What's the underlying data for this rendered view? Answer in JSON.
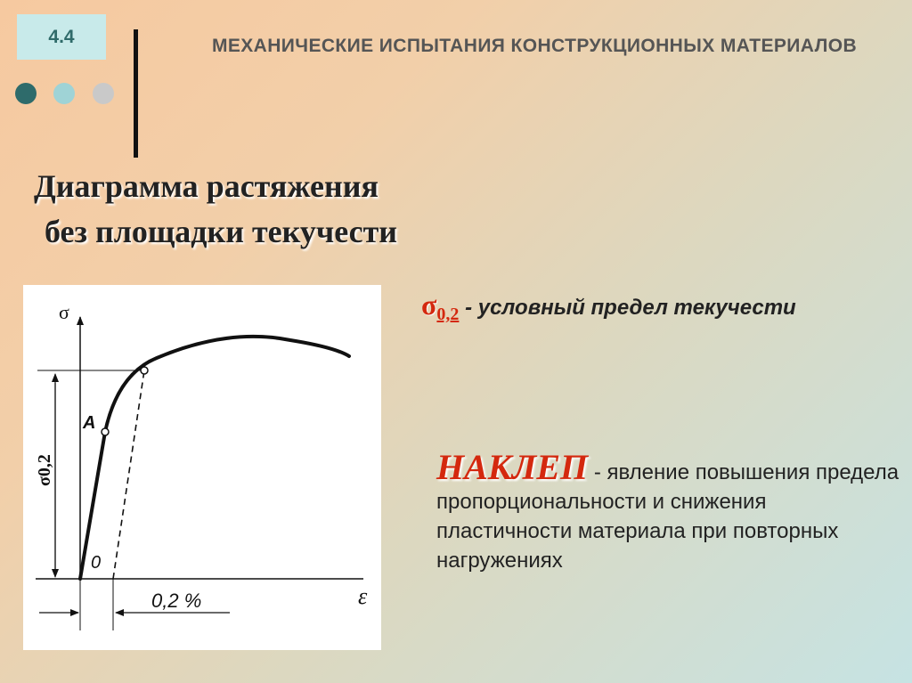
{
  "slide": {
    "number": "4.4",
    "title": "МЕХАНИЧЕСКИЕ ИСПЫТАНИЯ КОНСТРУКЦИОННЫХ МАТЕРИАЛОВ",
    "subtitle_line1": "Диаграмма растяжения",
    "subtitle_line2": "без площадки текучести",
    "colors": {
      "dot1": "#2e6b6b",
      "dot2": "#9fd3d6",
      "dot3": "#c9c9c9",
      "accent": "#d4280e"
    }
  },
  "figure": {
    "y_axis_symbol": "σ",
    "x_axis_symbol": "ε",
    "point_a": "A",
    "origin_label": "0",
    "yield_label": "σ0,2",
    "offset_label": "0,2 %"
  },
  "definition": {
    "symbol": "σ",
    "subscript": "0,2",
    "text": " - условный предел текучести"
  },
  "naklep": {
    "term": "НАКЛЕП",
    "text": " - явление повышения предела пропорциональности и снижения пластичности материала при повторных нагружениях"
  }
}
